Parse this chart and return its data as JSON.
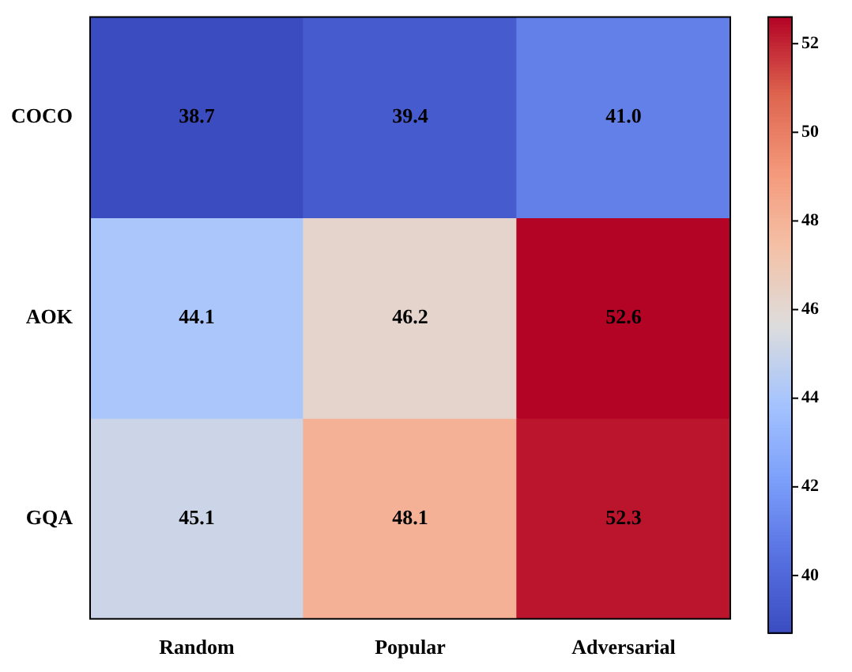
{
  "chart_data": {
    "type": "heatmap",
    "categories": [
      "Random",
      "Popular",
      "Adversarial"
    ],
    "y_categories": [
      "COCO",
      "AOK",
      "GQA"
    ],
    "cells": [
      [
        38.7,
        39.4,
        41.0
      ],
      [
        44.1,
        46.2,
        52.6
      ],
      [
        45.1,
        48.1,
        52.3
      ]
    ],
    "cell_labels": [
      [
        "38.7",
        "39.4",
        "41.0"
      ],
      [
        "44.1",
        "46.2",
        "52.6"
      ],
      [
        "45.1",
        "48.1",
        "52.3"
      ]
    ],
    "data_labels": true,
    "clim": [
      38.7,
      52.6
    ],
    "cticks": [
      40,
      42,
      44,
      46,
      48,
      50,
      52
    ]
  }
}
